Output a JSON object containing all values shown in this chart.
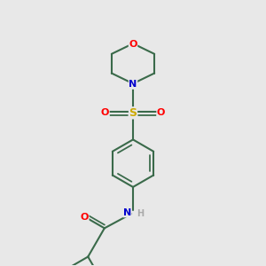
{
  "background_color": "#e8e8e8",
  "bond_color": "#3a6a4a",
  "O_color": "#ff0000",
  "N_color": "#0000cc",
  "S_color": "#ccaa00",
  "H_color": "#aaaaaa",
  "line_width": 1.5,
  "figsize": [
    3.0,
    3.0
  ],
  "dpi": 100,
  "xlim": [
    -2.5,
    2.5
  ],
  "ylim": [
    -4.5,
    3.5
  ]
}
